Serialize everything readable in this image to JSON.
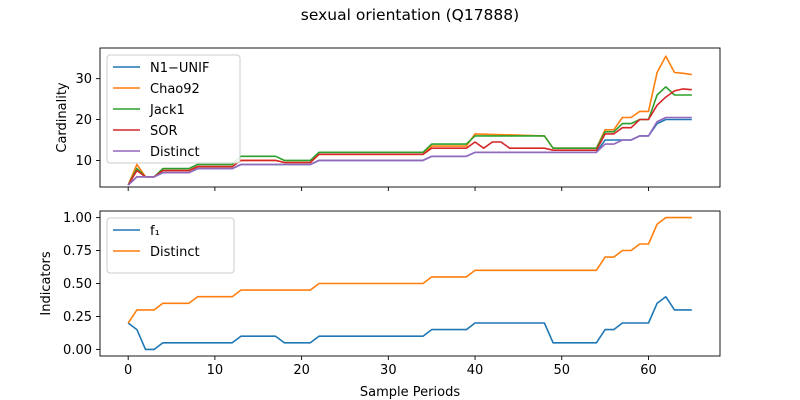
{
  "figure_title": "sexual orientation (Q17888)",
  "colors": {
    "blue": "#1f77b4",
    "orange": "#ff7f0e",
    "green": "#2ca02c",
    "red": "#d62728",
    "purple": "#9467bd"
  },
  "chart_data": [
    {
      "type": "line",
      "title": "",
      "xlabel": "",
      "ylabel": "Cardinality",
      "xlim": [
        -3.25,
        68.25
      ],
      "ylim": [
        3.5,
        37.5
      ],
      "xticks": [
        0,
        10,
        20,
        30,
        40,
        50,
        60
      ],
      "xticklabels": [
        "",
        "",
        "",
        "",
        "",
        "",
        ""
      ],
      "yticks": [
        10,
        20,
        30
      ],
      "yticklabels": [
        "10",
        "20",
        "30"
      ],
      "grid": false,
      "legend_position": "upper-left",
      "series": [
        {
          "name": "N1−UNIF",
          "color": "#1f77b4",
          "x": [
            0,
            1,
            2,
            3,
            4,
            7,
            8,
            12,
            13,
            17,
            18,
            21,
            22,
            34,
            35,
            39,
            40,
            48,
            49,
            54,
            55,
            56,
            57,
            58,
            59,
            60,
            61,
            62,
            63,
            64,
            65
          ],
          "y": [
            4,
            6,
            6,
            6,
            7,
            7,
            8,
            8,
            9,
            9,
            9,
            9,
            10,
            10,
            11,
            11,
            12,
            12,
            12,
            12,
            15,
            15,
            15,
            15,
            16,
            16,
            19,
            20,
            20,
            20,
            20
          ]
        },
        {
          "name": "Chao92",
          "color": "#ff7f0e",
          "x": [
            0,
            1,
            2,
            3,
            4,
            7,
            8,
            12,
            13,
            17,
            18,
            21,
            22,
            34,
            35,
            39,
            40,
            48,
            49,
            54,
            55,
            56,
            57,
            58,
            59,
            60,
            61,
            62,
            63,
            64,
            65
          ],
          "y": [
            4,
            9,
            6,
            6,
            7.5,
            7.5,
            8.5,
            8.5,
            10,
            10,
            9.5,
            9.5,
            11.5,
            11.5,
            13.5,
            13.5,
            16.5,
            16,
            13,
            13,
            17.5,
            17.5,
            20.5,
            20.5,
            22,
            22,
            31.5,
            35.5,
            31.5,
            31.3,
            31
          ],
          "note_visible": true
        },
        {
          "name": "Jack1",
          "color": "#2ca02c",
          "x": [
            0,
            1,
            2,
            3,
            4,
            7,
            8,
            12,
            13,
            17,
            18,
            21,
            22,
            34,
            35,
            39,
            40,
            48,
            49,
            54,
            55,
            56,
            57,
            58,
            59,
            60,
            61,
            62,
            63,
            64,
            65
          ],
          "y": [
            4,
            8,
            6,
            6,
            8,
            8,
            9,
            9,
            11,
            11,
            10,
            10,
            12,
            12,
            14,
            14,
            16,
            16,
            13,
            13,
            17,
            17,
            19,
            19,
            20,
            20,
            26,
            28,
            26,
            26,
            26
          ]
        },
        {
          "name": "SOR",
          "color": "#d62728",
          "x": [
            0,
            1,
            2,
            3,
            4,
            7,
            8,
            12,
            13,
            17,
            18,
            21,
            22,
            34,
            35,
            39,
            40,
            41,
            42,
            43,
            44,
            48,
            49,
            54,
            55,
            56,
            57,
            58,
            59,
            60,
            61,
            62,
            63,
            64,
            65
          ],
          "y": [
            4,
            7.5,
            6,
            6,
            7.5,
            7.5,
            8.5,
            8.5,
            10,
            10,
            9.5,
            9.5,
            11.5,
            11.5,
            13,
            13,
            14.5,
            13,
            14.5,
            14.5,
            13,
            13,
            12.5,
            12.5,
            16.5,
            16.5,
            18,
            18,
            20,
            20,
            23.5,
            25.5,
            27,
            27.5,
            27.3
          ]
        },
        {
          "name": "Distinct",
          "color": "#9467bd",
          "x": [
            0,
            1,
            2,
            3,
            4,
            7,
            8,
            12,
            13,
            17,
            18,
            21,
            22,
            34,
            35,
            39,
            40,
            48,
            49,
            54,
            55,
            56,
            57,
            58,
            59,
            60,
            61,
            62,
            63,
            64,
            65
          ],
          "y": [
            4,
            6,
            6,
            6,
            7,
            7,
            8,
            8,
            9,
            9,
            9,
            9,
            10,
            10,
            11,
            11,
            12,
            12,
            12,
            12,
            14,
            14,
            15,
            15,
            16,
            16,
            19.5,
            20.5,
            20.5,
            20.5,
            20.5
          ]
        }
      ]
    },
    {
      "type": "line",
      "title": "",
      "xlabel": "Sample Periods",
      "ylabel": "Indicators",
      "xlim": [
        -3.25,
        68.25
      ],
      "ylim": [
        -0.05,
        1.05
      ],
      "xticks": [
        0,
        10,
        20,
        30,
        40,
        50,
        60
      ],
      "xticklabels": [
        "0",
        "10",
        "20",
        "30",
        "40",
        "50",
        "60"
      ],
      "yticks": [
        0.0,
        0.25,
        0.5,
        0.75,
        1.0
      ],
      "yticklabels": [
        "0.00",
        "0.25",
        "0.50",
        "0.75",
        "1.00"
      ],
      "grid": false,
      "legend_position": "upper-left",
      "series": [
        {
          "name": "f₁",
          "color": "#1f77b4",
          "x": [
            0,
            1,
            2,
            3,
            4,
            12,
            13,
            17,
            18,
            21,
            22,
            34,
            35,
            39,
            40,
            48,
            49,
            54,
            55,
            56,
            57,
            60,
            61,
            62,
            63,
            65
          ],
          "y": [
            0.2,
            0.15,
            0.0,
            0.0,
            0.05,
            0.05,
            0.1,
            0.1,
            0.05,
            0.05,
            0.1,
            0.1,
            0.15,
            0.15,
            0.2,
            0.2,
            0.05,
            0.05,
            0.15,
            0.15,
            0.2,
            0.2,
            0.35,
            0.4,
            0.3,
            0.3
          ]
        },
        {
          "name": "Distinct",
          "color": "#ff7f0e",
          "x": [
            0,
            1,
            3,
            4,
            7,
            8,
            12,
            13,
            21,
            22,
            34,
            35,
            39,
            40,
            54,
            55,
            56,
            57,
            58,
            59,
            60,
            61,
            62,
            65
          ],
          "y": [
            0.2,
            0.3,
            0.3,
            0.35,
            0.35,
            0.4,
            0.4,
            0.45,
            0.45,
            0.5,
            0.5,
            0.55,
            0.55,
            0.6,
            0.6,
            0.7,
            0.7,
            0.75,
            0.75,
            0.8,
            0.8,
            0.95,
            1.0,
            1.0
          ]
        }
      ]
    }
  ]
}
